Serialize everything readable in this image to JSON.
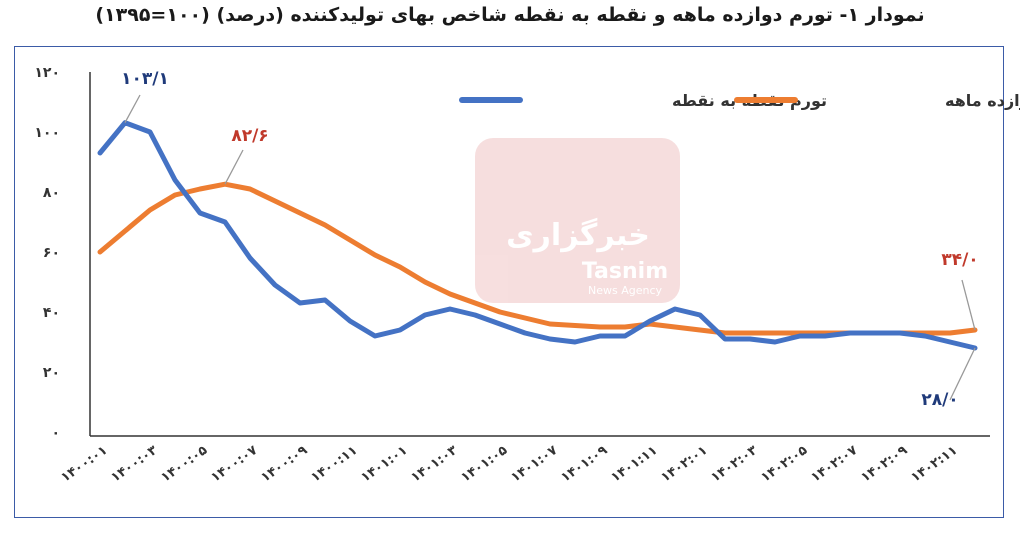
{
  "title": "نمودار ۱- تورم دوازده ماهه و نقطه به نقطه شاخص بهای تولیدکننده (درصد) (۱۰۰=۱۳۹۵)",
  "watermark": {
    "brand": "Tasnim",
    "sub": "News Agency",
    "fa": "خبرگزاری"
  },
  "colors": {
    "point": "#4472c4",
    "annual": "#ed7d31",
    "anno_blue": "#1f3a7a",
    "anno_red": "#c0392b"
  },
  "chart_data": {
    "type": "line",
    "title": "نمودار ۱- تورم دوازده ماهه و نقطه به نقطه شاخص بهای تولیدکننده (درصد) (۱۰۰=۱۳۹۵)",
    "ylim": [
      0,
      120
    ],
    "yticks": [
      "۰",
      "۲۰",
      "۴۰",
      "۶۰",
      "۸۰",
      "۱۰۰",
      "۱۲۰"
    ],
    "x_tick_labels": [
      "۱۴۰۰:۰۱",
      "۱۴۰۰:۰۳",
      "۱۴۰۰:۰۵",
      "۱۴۰۰:۰۷",
      "۱۴۰۰:۰۹",
      "۱۴۰۰:۱۱",
      "۱۴۰۱:۰۱",
      "۱۴۰۱:۰۳",
      "۱۴۰۱:۰۵",
      "۱۴۰۱:۰۷",
      "۱۴۰۱:۰۹",
      "۱۴۰۱:۱۱",
      "۱۴۰۲:۰۱",
      "۱۴۰۲:۰۳",
      "۱۴۰۲:۰۵",
      "۱۴۰۲:۰۷",
      "۱۴۰۲:۰۹",
      "۱۴۰۲:۱۱"
    ],
    "n_points": 36,
    "series": [
      {
        "name": "تورم نقطه به نقطه",
        "values": [
          93,
          103.1,
          100,
          84,
          73,
          70,
          58,
          49,
          43,
          44,
          37,
          32,
          34,
          39,
          41,
          39,
          36,
          33,
          31,
          30,
          32,
          32,
          37,
          41,
          39,
          31,
          31,
          30,
          32,
          32,
          33,
          33,
          33,
          32,
          30,
          28
        ]
      },
      {
        "name": "تورم دوازده ماهه",
        "values": [
          60,
          67,
          74,
          79,
          81,
          82.6,
          81,
          77,
          73,
          69,
          64,
          59,
          55,
          50,
          46,
          43,
          40,
          38,
          36,
          35.5,
          35,
          35,
          36,
          35,
          34,
          33,
          33,
          33,
          33,
          33,
          33,
          33,
          33,
          33,
          33,
          34
        ]
      }
    ],
    "annotations": [
      {
        "text": "۱۰۳/۱",
        "series": 0,
        "index": 1
      },
      {
        "text": "۸۲/۶",
        "series": 1,
        "index": 5
      },
      {
        "text": "۳۴/۰",
        "series": 1,
        "index": 35
      },
      {
        "text": "۲۸/۰",
        "series": 0,
        "index": 35
      }
    ],
    "legend_position": "top-right"
  }
}
